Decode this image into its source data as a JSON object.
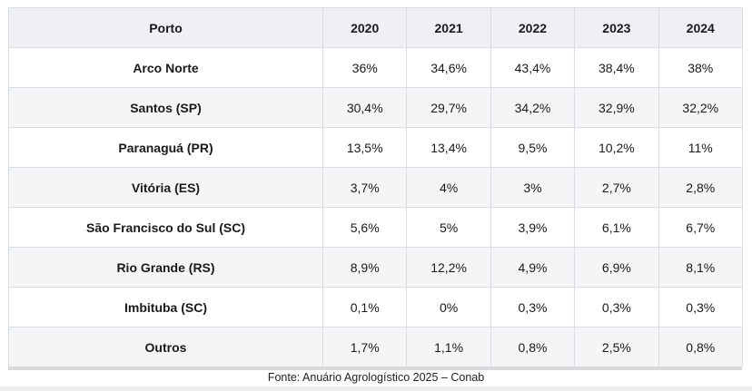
{
  "table": {
    "headers": [
      "Porto",
      "2020",
      "2021",
      "2022",
      "2023",
      "2024"
    ],
    "rows": [
      {
        "port": "Arco Norte",
        "values": [
          "36%",
          "34,6%",
          "43,4%",
          "38,4%",
          "38%"
        ]
      },
      {
        "port": "Santos (SP)",
        "values": [
          "30,4%",
          "29,7%",
          "34,2%",
          "32,9%",
          "32,2%"
        ]
      },
      {
        "port": "Paranaguá (PR)",
        "values": [
          "13,5%",
          "13,4%",
          "9,5%",
          "10,2%",
          "11%"
        ]
      },
      {
        "port": "Vitória (ES)",
        "values": [
          "3,7%",
          "4%",
          "3%",
          "2,7%",
          "2,8%"
        ]
      },
      {
        "port": "São Francisco do Sul (SC)",
        "values": [
          "5,6%",
          "5%",
          "3,9%",
          "6,1%",
          "6,7%"
        ]
      },
      {
        "port": "Rio Grande (RS)",
        "values": [
          "8,9%",
          "12,2%",
          "4,9%",
          "6,9%",
          "8,1%"
        ]
      },
      {
        "port": "Imbituba (SC)",
        "values": [
          "0,1%",
          "0%",
          "0,3%",
          "0,3%",
          "0,3%"
        ]
      },
      {
        "port": "Outros",
        "values": [
          "1,7%",
          "1,1%",
          "0,8%",
          "2,5%",
          "0,8%"
        ]
      }
    ]
  },
  "source": "Fonte: Anuário Agrologístico 2025 – Conab",
  "colors": {
    "header_bg": "#eef0f3",
    "stripe_bg": "#f4f5f7",
    "border": "#d9dde3"
  }
}
